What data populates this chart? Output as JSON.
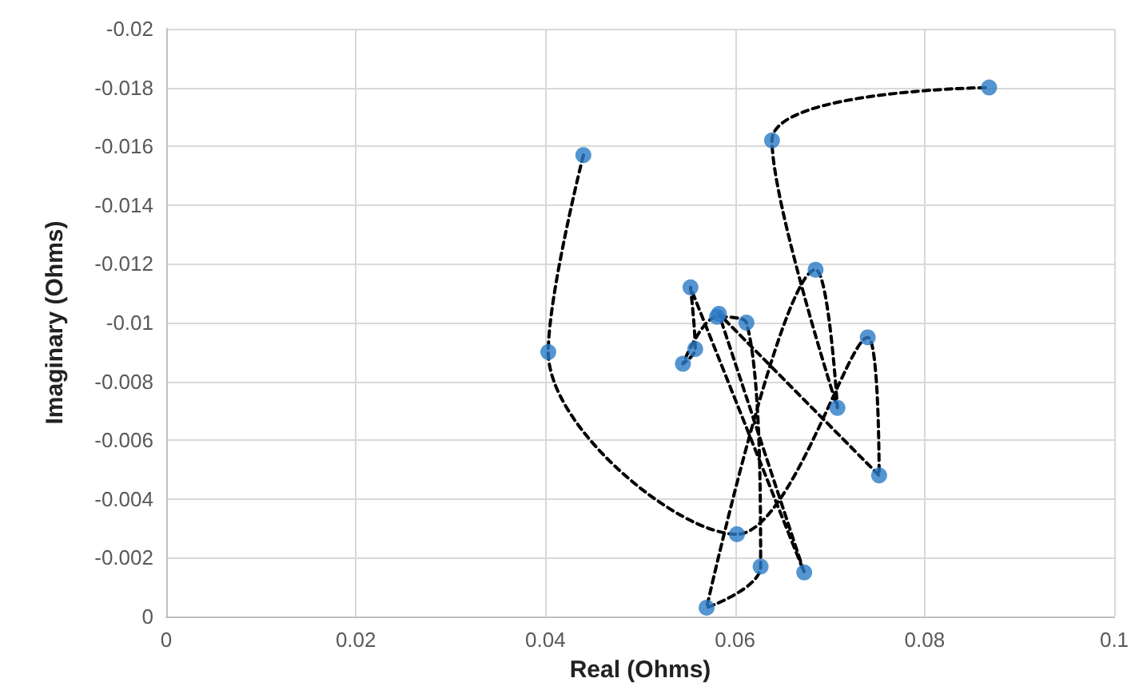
{
  "chart_data": {
    "type": "scatter",
    "xlabel": "Real (Ohms)",
    "ylabel": "Imaginary (Ohms)",
    "xlim": [
      0,
      0.1
    ],
    "xticks": [
      0,
      0.02,
      0.04,
      0.06,
      0.08,
      0.1
    ],
    "ylim": [
      0,
      -0.02
    ],
    "yticks": [
      -0.02,
      -0.018,
      -0.016,
      -0.014,
      -0.012,
      -0.01,
      -0.008,
      -0.006,
      -0.004,
      -0.002,
      0
    ],
    "grid": true,
    "series": [
      {
        "type": "line",
        "color": "#000000",
        "line_style": "dashed",
        "marker": "none",
        "x": [
          0.044,
          0.0403,
          0.0602,
          0.074,
          0.0752,
          0.0583,
          0.0673,
          0.0553,
          0.0558,
          0.0545,
          0.0581,
          0.0612,
          0.0627,
          0.057,
          0.0685,
          0.0708,
          0.0639,
          0.0868
        ],
        "values": [
          -0.0157,
          -0.009,
          -0.0028,
          -0.0095,
          -0.0048,
          -0.0103,
          -0.0015,
          -0.0112,
          -0.0091,
          -0.0086,
          -0.0102,
          -0.01,
          -0.0017,
          -0.0003,
          -0.0118,
          -0.0071,
          -0.0162,
          -0.018
        ]
      },
      {
        "color": "#2a7bc6",
        "marker": "circle",
        "x": [
          0.044,
          0.0403,
          0.0602,
          0.074,
          0.0752,
          0.0583,
          0.0673,
          0.0553,
          0.0558,
          0.0545,
          0.0581,
          0.0612,
          0.0627,
          0.057,
          0.0685,
          0.0708,
          0.0639,
          0.0868
        ],
        "values": [
          -0.0157,
          -0.009,
          -0.0028,
          -0.0095,
          -0.0048,
          -0.0103,
          -0.0015,
          -0.0112,
          -0.0091,
          -0.0086,
          -0.0102,
          -0.01,
          -0.0017,
          -0.0003,
          -0.0118,
          -0.0071,
          -0.0162,
          -0.018
        ]
      }
    ]
  }
}
